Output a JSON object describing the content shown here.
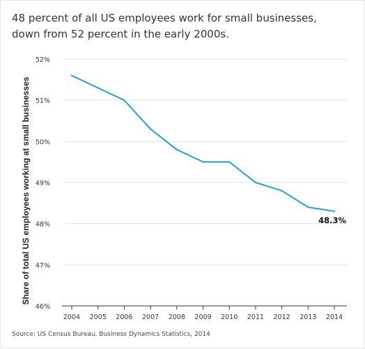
{
  "chart_data": {
    "type": "line",
    "title": "48 percent of all US employees work for small businesses, down from 52 percent in the early 2000s.",
    "xlabel": "",
    "ylabel": "Share of total US employees working at small businesses",
    "x": [
      2004,
      2005,
      2006,
      2007,
      2008,
      2009,
      2010,
      2011,
      2012,
      2013,
      2014
    ],
    "x_tick_labels": [
      "2004",
      "2005",
      "2006",
      "2007",
      "2008",
      "2009",
      "2010",
      "2011",
      "2012",
      "2013",
      "2014"
    ],
    "series": [
      {
        "values": [
          51.6,
          51.3,
          51.0,
          50.3,
          49.8,
          49.5,
          49.5,
          49.0,
          48.8,
          48.4,
          48.3
        ]
      }
    ],
    "ylim": [
      46,
      52
    ],
    "y_ticks": [
      46,
      47,
      48,
      49,
      50,
      51,
      52
    ],
    "y_tick_labels": [
      "46%",
      "47%",
      "48%",
      "49%",
      "50%",
      "51%",
      "52%"
    ],
    "annotations": [
      {
        "x": 2014,
        "y": 48.3,
        "text": "48.3%"
      }
    ],
    "grid": "horizontal",
    "line_color": "#1aa3dc",
    "source": "Source: US Census Bureau, Business Dynamics Statistics, 2014"
  }
}
